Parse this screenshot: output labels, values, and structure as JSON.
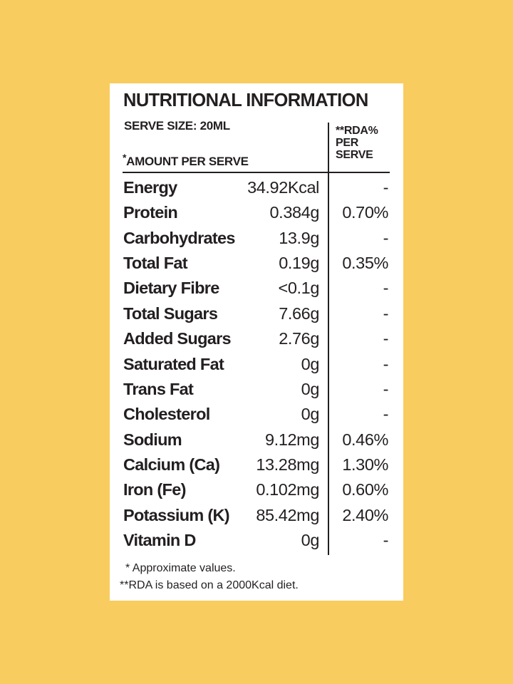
{
  "colors": {
    "background": "#f9cc5f",
    "card": "#ffffff",
    "text": "#231f20"
  },
  "title": "NUTRITIONAL INFORMATION",
  "serve_size": "SERVE SIZE: 20ML",
  "amount_marker": "*",
  "amount_header": "AMOUNT PER SERVE",
  "rda_header": [
    "**RDA%",
    "PER",
    "SERVE"
  ],
  "rows": [
    {
      "name": "Energy",
      "value": "34.92Kcal",
      "rda": "-"
    },
    {
      "name": "Protein",
      "value": "0.384g",
      "rda": "0.70%"
    },
    {
      "name": "Carbohydrates",
      "value": "13.9g",
      "rda": "-"
    },
    {
      "name": "Total Fat",
      "value": "0.19g",
      "rda": "0.35%"
    },
    {
      "name": "Dietary Fibre",
      "value": "<0.1g",
      "rda": "-"
    },
    {
      "name": "Total Sugars",
      "value": "7.66g",
      "rda": "-"
    },
    {
      "name": "Added Sugars",
      "value": "2.76g",
      "rda": "-"
    },
    {
      "name": "Saturated Fat",
      "value": "0g",
      "rda": "-"
    },
    {
      "name": "Trans Fat",
      "value": "0g",
      "rda": "-"
    },
    {
      "name": "Cholesterol",
      "value": "0g",
      "rda": "-"
    },
    {
      "name": "Sodium",
      "value": "9.12mg",
      "rda": "0.46%"
    },
    {
      "name": "Calcium (Ca)",
      "value": "13.28mg",
      "rda": "1.30%"
    },
    {
      "name": "Iron (Fe)",
      "value": "0.102mg",
      "rda": "0.60%"
    },
    {
      "name": "Potassium (K)",
      "value": "85.42mg",
      "rda": "2.40%"
    },
    {
      "name": "Vitamin D",
      "value": "0g",
      "rda": "-"
    }
  ],
  "footnotes": [
    "* Approximate values.",
    "**RDA is based on a 2000Kcal diet."
  ]
}
